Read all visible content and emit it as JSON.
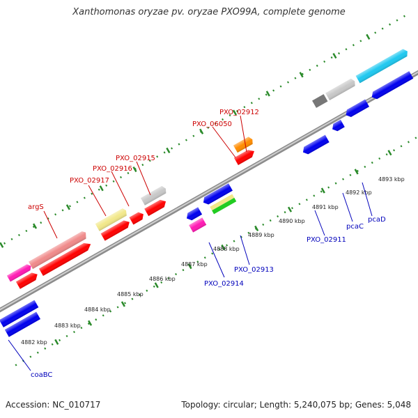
{
  "title": "Xanthomonas oryzae pv. oryzae PXO99A, complete genome",
  "footer": {
    "accession": "Accession: NC_010717",
    "summary": "Topology: circular; Length: 5,240,075 bp; Genes: 5,048"
  },
  "colors": {
    "backbone": "#8c8c8c",
    "tick": "#2a8a2a",
    "forward_label": "#cc0000",
    "reverse_label": "#0000bb"
  },
  "ticks": [
    {
      "label": "4882 kbp"
    },
    {
      "label": "4883 kbp"
    },
    {
      "label": "4884 kbp"
    },
    {
      "label": "4885 kbp"
    },
    {
      "label": "4886 kbp"
    },
    {
      "label": "4887 kbp"
    },
    {
      "label": "4888 kbp"
    },
    {
      "label": "4889 kbp"
    },
    {
      "label": "4890 kbp"
    },
    {
      "label": "4891 kbp"
    },
    {
      "label": "4892 kbp"
    },
    {
      "label": "4893 kbp"
    }
  ],
  "forward_labels": [
    {
      "text": "argS"
    },
    {
      "text": "PXO_02917"
    },
    {
      "text": "PXO_02916"
    },
    {
      "text": "PXO_02915"
    },
    {
      "text": "PXO_06050"
    },
    {
      "text": "PXO_02912"
    }
  ],
  "reverse_labels": [
    {
      "text": "coaBC"
    },
    {
      "text": "PXO_02914"
    },
    {
      "text": "PXO_02913"
    },
    {
      "text": "PXO_02911"
    },
    {
      "text": "pcaC"
    },
    {
      "text": "pcaD"
    }
  ]
}
